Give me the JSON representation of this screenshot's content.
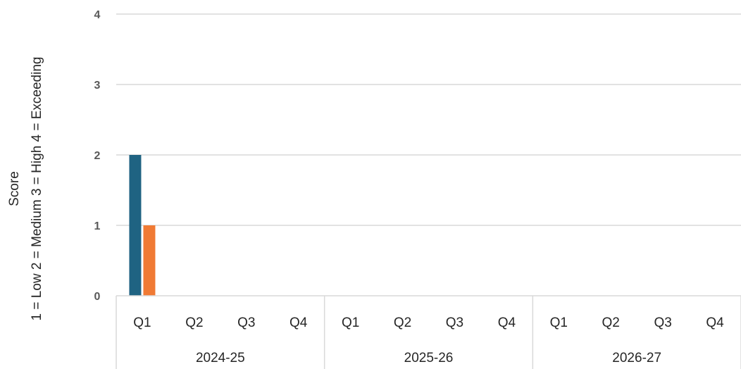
{
  "chart_data": {
    "type": "bar",
    "groups": [
      "2024-25",
      "2025-26",
      "2026-27"
    ],
    "categories": [
      "Q1",
      "Q2",
      "Q3",
      "Q4",
      "Q1",
      "Q2",
      "Q3",
      "Q4",
      "Q1",
      "Q2",
      "Q3",
      "Q4"
    ],
    "series": [
      {
        "color": "#1f6382",
        "values": [
          2,
          0,
          0,
          0,
          0,
          0,
          0,
          0,
          0,
          0,
          0,
          0
        ]
      },
      {
        "color": "#f07a34",
        "values": [
          1,
          0,
          0,
          0,
          0,
          0,
          0,
          0,
          0,
          0,
          0,
          0
        ]
      }
    ],
    "ylabel_line1": "Score",
    "ylabel_line2": "1 = Low   2 = Medium   3 = High  4 = Exceeding",
    "ylim": [
      0,
      4
    ],
    "yticks": [
      "0",
      "1",
      "2",
      "3",
      "4"
    ],
    "grid": true,
    "colors": {
      "gridline": "#d9d9d9",
      "axis": "#d9d9d9"
    }
  }
}
